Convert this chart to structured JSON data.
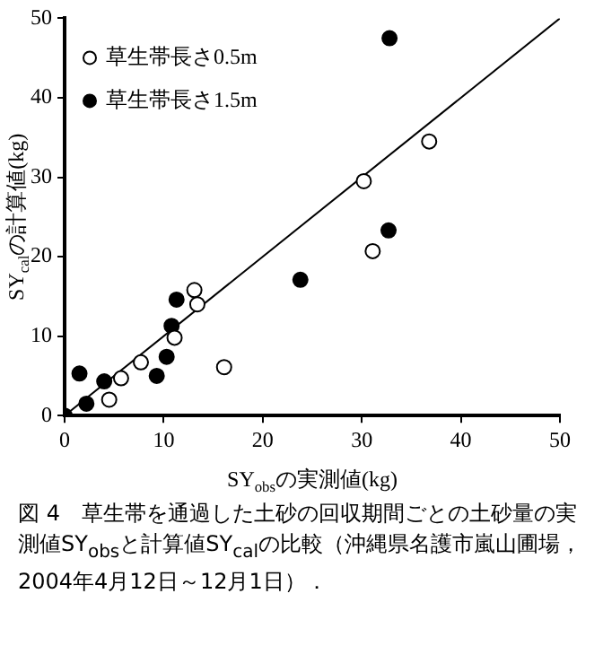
{
  "chart_data": {
    "type": "scatter",
    "xlabel": "SY$_{obs}$の実測値(kg)",
    "ylabel": "SY$_{cal}$の計算値(kg)",
    "xlim": [
      0,
      50
    ],
    "ylim": [
      0,
      50
    ],
    "xticks": [
      0,
      10,
      20,
      30,
      40,
      50
    ],
    "yticks": [
      0,
      10,
      20,
      30,
      40,
      50
    ],
    "grid": false,
    "legend": "top left",
    "marker": "circle",
    "annotations": [
      "図 4　草生帯を通過した土砂の回収期間ごとの土砂量の実測値SY$_{obs}$と計算値SY$_{cal}$の比較（沖縄県名護市嵐山圃場，2004年4月12日～12月1日）．"
    ],
    "series": [
      {
        "name": "草生帯長さ0.5m",
        "color": "#ffffff",
        "x": [
          4.5,
          5.7,
          7.7,
          11.1,
          13.4,
          13.1,
          16.1,
          31.1,
          30.2,
          36.8
        ],
        "values": [
          2.0,
          4.7,
          6.7,
          9.8,
          14.0,
          15.8,
          6.1,
          20.7,
          29.5,
          34.5
        ]
      },
      {
        "name": "草生帯長さ1.5m",
        "color": "#000000",
        "x": [
          0,
          1.5,
          2.2,
          4.0,
          9.3,
          10.3,
          10.8,
          11.3,
          23.8,
          32.7,
          32.8
        ],
        "values": [
          0,
          5.3,
          1.5,
          4.3,
          5.0,
          7.4,
          11.3,
          14.6,
          17.1,
          23.3,
          47.5
        ]
      },
      {
        "type": "line",
        "color": "#000000",
        "marker": "none",
        "x": [
          0,
          50
        ],
        "values": [
          0,
          50
        ]
      }
    ]
  }
}
